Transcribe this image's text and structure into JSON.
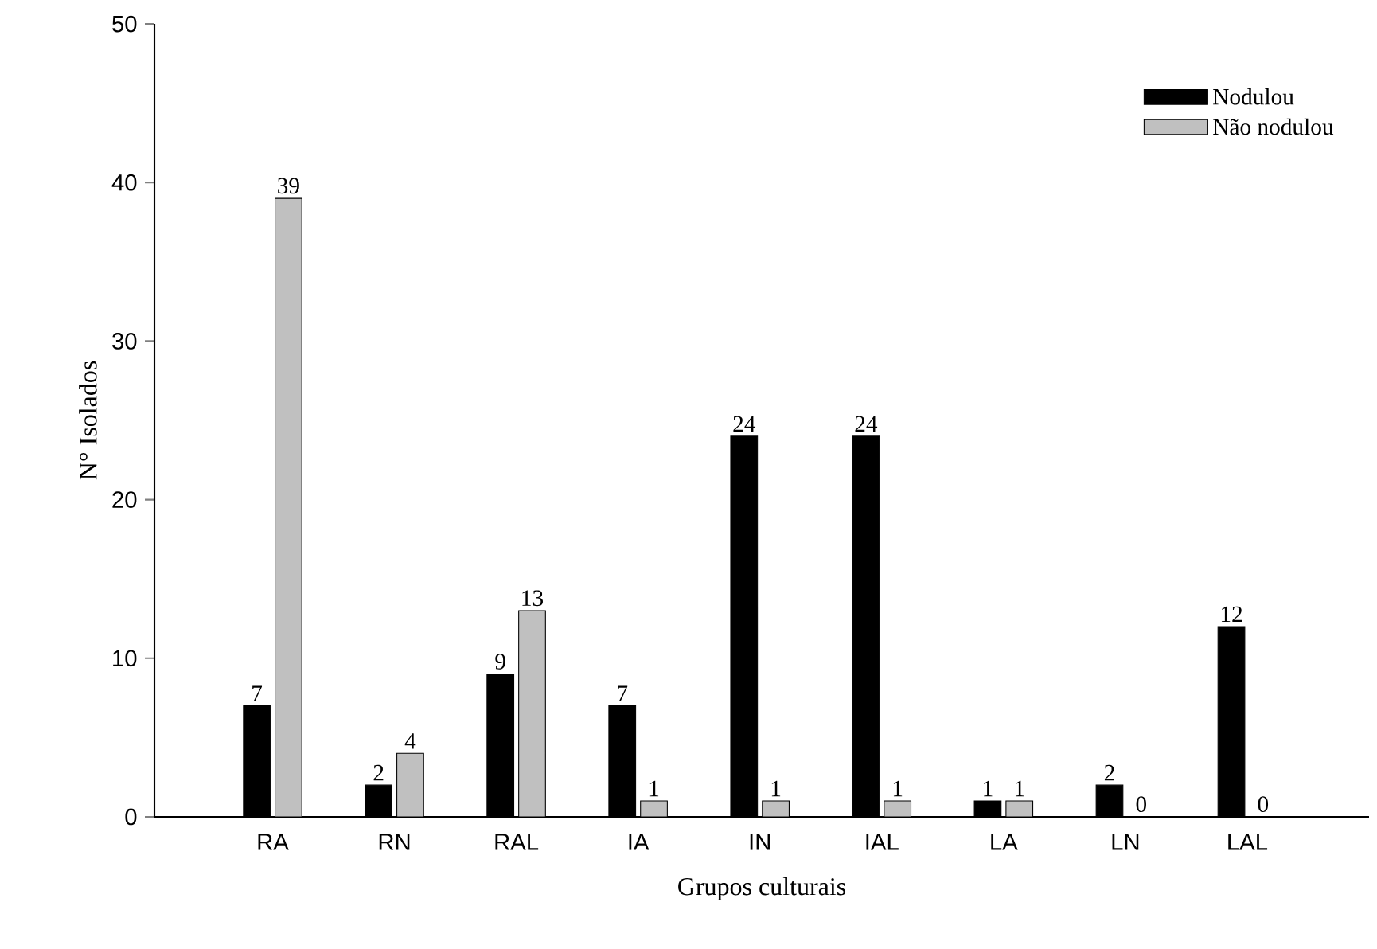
{
  "chart_data": {
    "type": "bar",
    "xlabel": "Grupos culturais",
    "ylabel": "N° Isolados",
    "categories": [
      "RA",
      "RN",
      "RAL",
      "IA",
      "IN",
      "IAL",
      "LA",
      "LN",
      "LAL"
    ],
    "series": [
      {
        "name": "Nodulou",
        "color": "#000000",
        "values": [
          7,
          2,
          9,
          7,
          24,
          24,
          1,
          2,
          12
        ]
      },
      {
        "name": "Não nodulou",
        "color": "#c0c0c0",
        "values": [
          39,
          4,
          13,
          1,
          1,
          1,
          1,
          0,
          0
        ]
      }
    ],
    "ylim": [
      0,
      50
    ],
    "yticks": [
      0,
      10,
      20,
      30,
      40,
      50
    ],
    "legend": "top right",
    "data_labels": true,
    "grid": false
  }
}
